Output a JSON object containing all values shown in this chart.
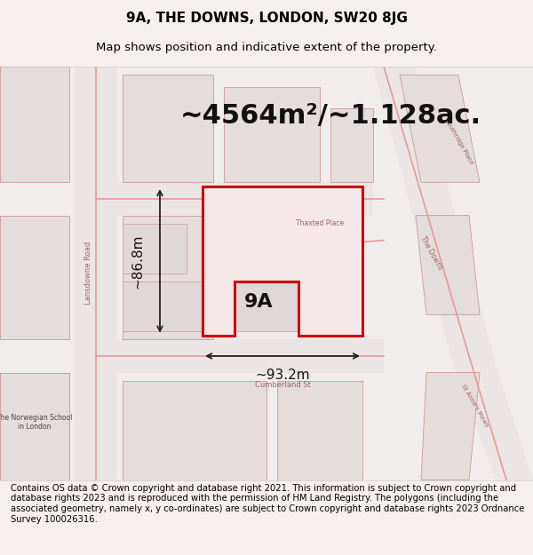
{
  "title_line1": "9A, THE DOWNS, LONDON, SW20 8JG",
  "title_line2": "Map shows position and indicative extent of the property.",
  "area_text": "~4564m²/~1.128ac.",
  "label_9A": "9A",
  "dim_width": "~93.2m",
  "dim_height": "~86.8m",
  "footer_text": "Contains OS data © Crown copyright and database right 2021. This information is subject to Crown copyright and database rights 2023 and is reproduced with the permission of HM Land Registry. The polygons (including the associated geometry, namely x, y co-ordinates) are subject to Crown copyright and database rights 2023 Ordnance Survey 100026316.",
  "bg_color": "#f5f0f0",
  "map_bg": "#f7f3f3",
  "road_color": "#e8a0a0",
  "building_fill": "#e8e0e0",
  "building_stroke": "#cc8888",
  "property_fill": "#f5e8e8",
  "property_stroke": "#cc0000",
  "arrow_color": "#222222",
  "title_fontsize": 11,
  "subtitle_fontsize": 9.5,
  "area_fontsize": 22,
  "label_9A_fontsize": 16,
  "dim_fontsize": 11,
  "footer_fontsize": 7.2
}
